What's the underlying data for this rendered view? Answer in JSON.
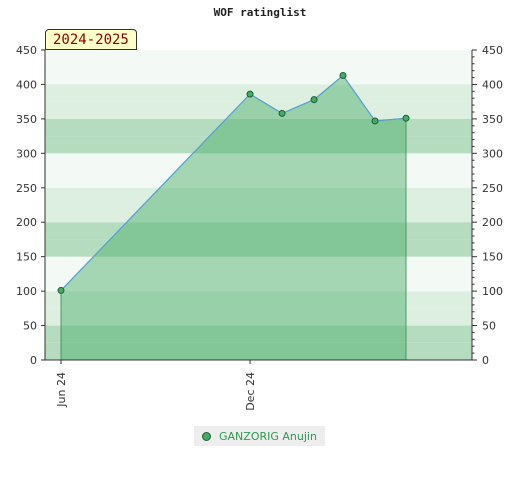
{
  "chart_data": {
    "type": "area",
    "title": "WOF ratinglist",
    "season_label": "2024-2025",
    "xlabel": "",
    "ylabel": "",
    "x_date_range": [
      "2024-06-01",
      "2025-06-30"
    ],
    "x_tick_labels": [
      {
        "date": "2024-06-01",
        "label": "Jun 24"
      },
      {
        "date": "2024-12-01",
        "label": "Dec 24"
      }
    ],
    "ylim": [
      0,
      450
    ],
    "y_ticks": [
      0,
      50,
      100,
      150,
      200,
      250,
      300,
      350,
      400,
      450
    ],
    "legend_position": "bottom-center",
    "series": [
      {
        "name": "GANZORIG Anujin",
        "color": "#44aa66",
        "points": [
          {
            "date": "2024-06-01",
            "value": 101
          },
          {
            "date": "2024-12-01",
            "value": 386
          },
          {
            "date": "2025-01-01",
            "value": 358
          },
          {
            "date": "2025-02-01",
            "value": 378
          },
          {
            "date": "2025-03-01",
            "value": 413
          },
          {
            "date": "2025-04-01",
            "value": 347
          },
          {
            "date": "2025-05-01",
            "value": 351
          }
        ]
      }
    ]
  }
}
